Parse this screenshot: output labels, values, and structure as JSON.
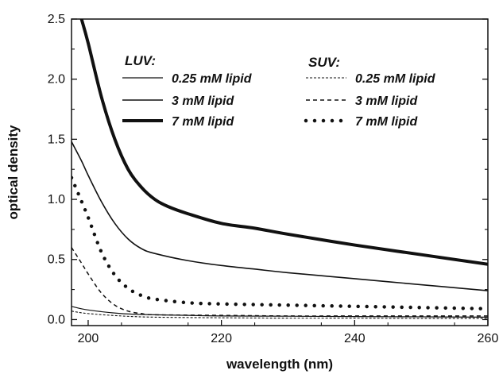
{
  "chart_data": {
    "type": "line",
    "title": "",
    "xlabel": "wavelength (nm)",
    "ylabel": "optical density",
    "xlim": [
      197.5,
      260
    ],
    "ylim": [
      -0.05,
      2.5
    ],
    "x_ticks": [
      200,
      220,
      240,
      260
    ],
    "x_tick_labels": [
      "200",
      "220",
      "240",
      "260"
    ],
    "y_ticks": [
      0.0,
      0.5,
      1.0,
      1.5,
      2.0,
      2.5
    ],
    "y_tick_labels": [
      "0.0",
      "0.5",
      "1.0",
      "1.5",
      "2.0",
      "2.5"
    ],
    "grid": false,
    "legend_placement": "top",
    "legend_groups": [
      "LUV:",
      "SUV:"
    ],
    "series": [
      {
        "name": "0.25 mM lipid",
        "group": "LUV:",
        "style": "thin-solid",
        "x": [
          197.5,
          200,
          205,
          210,
          215,
          220,
          230,
          240,
          250,
          260
        ],
        "y": [
          0.11,
          0.08,
          0.05,
          0.04,
          0.035,
          0.03,
          0.028,
          0.025,
          0.023,
          0.02
        ]
      },
      {
        "name": "3 mM lipid",
        "group": "LUV:",
        "style": "solid",
        "x": [
          197.5,
          199,
          200,
          202,
          204,
          206,
          208,
          210,
          215,
          220,
          225,
          230,
          240,
          250,
          260
        ],
        "y": [
          1.48,
          1.32,
          1.2,
          0.98,
          0.8,
          0.67,
          0.59,
          0.55,
          0.49,
          0.45,
          0.42,
          0.39,
          0.34,
          0.29,
          0.24
        ]
      },
      {
        "name": "7 mM lipid",
        "group": "LUV:",
        "style": "thick-solid",
        "x": [
          199,
          200,
          202,
          204,
          206,
          208,
          210,
          212,
          215,
          220,
          225,
          230,
          240,
          250,
          260
        ],
        "y": [
          2.5,
          2.3,
          1.85,
          1.5,
          1.25,
          1.1,
          1.0,
          0.94,
          0.88,
          0.8,
          0.76,
          0.71,
          0.62,
          0.54,
          0.46
        ]
      },
      {
        "name": "0.25 mM lipid",
        "group": "SUV:",
        "style": "fine-dash",
        "x": [
          197.5,
          200,
          205,
          210,
          220,
          230,
          240,
          250,
          260
        ],
        "y": [
          0.07,
          0.05,
          0.03,
          0.02,
          0.015,
          0.012,
          0.012,
          0.01,
          0.01
        ]
      },
      {
        "name": "3 mM lipid",
        "group": "SUV:",
        "style": "dash",
        "x": [
          197.5,
          199,
          200,
          202,
          204,
          206,
          208,
          210,
          220,
          230,
          240,
          250,
          260
        ],
        "y": [
          0.6,
          0.47,
          0.38,
          0.22,
          0.12,
          0.07,
          0.05,
          0.04,
          0.035,
          0.03,
          0.03,
          0.03,
          0.03
        ]
      },
      {
        "name": "7 mM lipid",
        "group": "SUV:",
        "style": "dots",
        "x": [
          197.5,
          198.5,
          200,
          202,
          204,
          206,
          208,
          210,
          215,
          220,
          230,
          240,
          250,
          260
        ],
        "y": [
          1.18,
          1.05,
          0.85,
          0.56,
          0.37,
          0.26,
          0.2,
          0.17,
          0.14,
          0.13,
          0.12,
          0.11,
          0.1,
          0.09
        ]
      }
    ]
  }
}
